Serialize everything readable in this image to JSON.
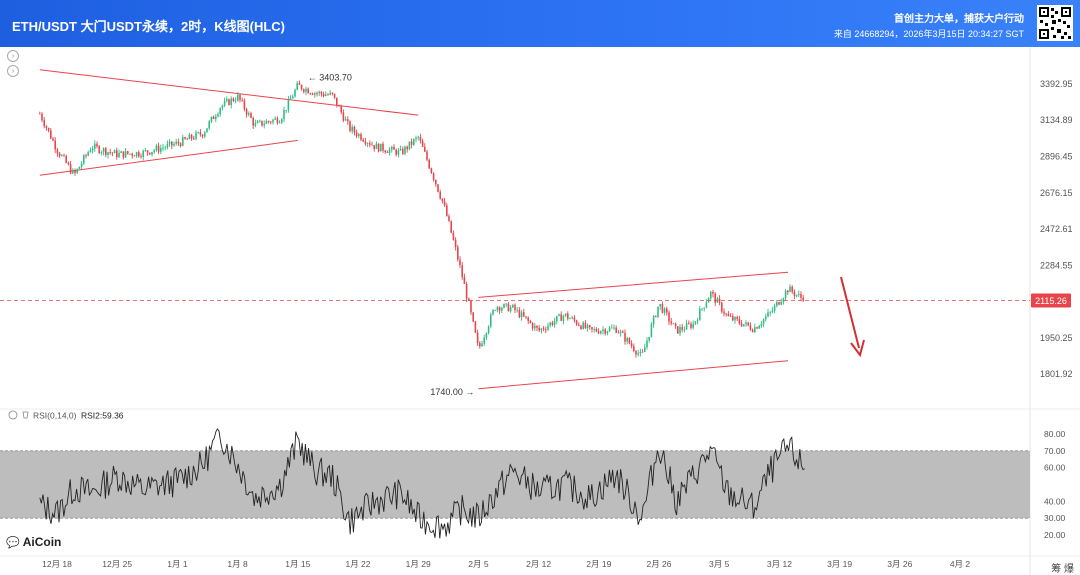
{
  "header": {
    "title": "ETH/USDT 大门USDT永续，2时，K线图(HLC)",
    "tagline": "首创主力大单，捕获大户行动",
    "meta": "来自 24668294，2026年3月15日 20:34:27 SGT"
  },
  "brand": {
    "name": "AiCoin",
    "icon": "aicoin-logo-icon"
  },
  "tools": "筹  爆",
  "colors": {
    "up": "#2ebd85",
    "down": "#e8444b",
    "trendline": "#e8444b",
    "current_price": "#e8444b",
    "rsi_band": "#bdbdbd",
    "rsi_line": "#222222",
    "arrow": "#d32f2f"
  },
  "chart_data": [
    {
      "type": "candlestick",
      "title": "ETH/USDT 大门USDT永续，2时，K线图(HLC)",
      "y_ticks": [
        "3392.95",
        "3134.89",
        "2896.45",
        "2676.15",
        "2472.61",
        "2284.55",
        "1950.25",
        "1801.92"
      ],
      "y_tick_values": [
        3392.95,
        3134.89,
        2896.45,
        2676.15,
        2472.61,
        2284.55,
        1950.25,
        1801.92
      ],
      "y_scale": "log",
      "ylim": [
        1700,
        3520
      ],
      "x_ticks": [
        "12月 18",
        "12月 25",
        "1月 1",
        "1月 8",
        "1月 15",
        "1月 22",
        "1月 29",
        "2月 5",
        "2月 12",
        "2月 19",
        "2月 26",
        "3月 5",
        "3月 12",
        "3月 19",
        "3月 26",
        "4月 2"
      ],
      "current_price": 2115.26,
      "current_price_label": "2115.26",
      "annotations": [
        {
          "text": "← 3403.70",
          "value": 3403.7
        },
        {
          "text": "1740.00 →",
          "value": 1740.0
        }
      ],
      "approx_close_path": [
        [
          "12月 16",
          3180
        ],
        [
          "12月 18",
          2940
        ],
        [
          "12月 20",
          2780
        ],
        [
          "12月 22",
          2960
        ],
        [
          "12月 25",
          2910
        ],
        [
          "12月 28",
          2920
        ],
        [
          "1月 1",
          2980
        ],
        [
          "1月 4",
          3050
        ],
        [
          "1月 6",
          3230
        ],
        [
          "1月 8",
          3300
        ],
        [
          "1月 10",
          3100
        ],
        [
          "1月 13",
          3150
        ],
        [
          "1月 15",
          3380
        ],
        [
          "1月 17",
          3330
        ],
        [
          "1月 19",
          3310
        ],
        [
          "1月 21",
          3080
        ],
        [
          "1月 24",
          2960
        ],
        [
          "1月 27",
          2920
        ],
        [
          "1月 29",
          3020
        ],
        [
          "2月 1",
          2600
        ],
        [
          "2月 3",
          2250
        ],
        [
          "2月 5",
          1900
        ],
        [
          "2月 7",
          2090
        ],
        [
          "2月 9",
          2080
        ],
        [
          "2月 12",
          1980
        ],
        [
          "2月 15",
          2050
        ],
        [
          "2月 18",
          1980
        ],
        [
          "2月 21",
          1990
        ],
        [
          "2月 24",
          1870
        ],
        [
          "2月 26",
          2100
        ],
        [
          "2月 28",
          1980
        ],
        [
          "3月 2",
          2010
        ],
        [
          "3月 4",
          2150
        ],
        [
          "3月 6",
          2040
        ],
        [
          "3月 9",
          1990
        ],
        [
          "3月 11",
          2060
        ],
        [
          "3月 13",
          2170
        ],
        [
          "3月 15",
          2115
        ]
      ],
      "trendlines": [
        {
          "name": "upper-left",
          "start": [
            "12月 16",
            3500
          ],
          "end": [
            "1月 29",
            3170
          ]
        },
        {
          "name": "lower-left",
          "start": [
            "12月 16",
            2780
          ],
          "end": [
            "1月 15",
            3000
          ]
        },
        {
          "name": "upper-right",
          "start": [
            "2月 5",
            2130
          ],
          "end": [
            "3月 13",
            2250
          ]
        },
        {
          "name": "lower-right",
          "start": [
            "2月 5",
            1745
          ],
          "end": [
            "3月 13",
            1855
          ]
        }
      ]
    },
    {
      "type": "line",
      "title": "RSI(0,14,0)",
      "legend": "RSI2:59.36",
      "series": [
        {
          "name": "RSI2",
          "last": 59.36
        }
      ],
      "y_ticks": [
        "80.00",
        "70.00",
        "60.00",
        "40.00",
        "30.00",
        "20.00"
      ],
      "y_tick_values": [
        80,
        70,
        60,
        40,
        30,
        20
      ],
      "band": [
        30,
        70
      ],
      "ylim": [
        17,
        84
      ],
      "approx_path": [
        [
          "12月 16",
          38
        ],
        [
          "12月 18",
          33
        ],
        [
          "12月 20",
          48
        ],
        [
          "12月 22",
          45
        ],
        [
          "12月 25",
          55
        ],
        [
          "12月 28",
          47
        ],
        [
          "1月 1",
          52
        ],
        [
          "1月 4",
          62
        ],
        [
          "1月 6",
          80
        ],
        [
          "1月 8",
          62
        ],
        [
          "1月 10",
          42
        ],
        [
          "1月 13",
          50
        ],
        [
          "1月 15",
          76
        ],
        [
          "1月 17",
          58
        ],
        [
          "1月 19",
          55
        ],
        [
          "1月 21",
          28
        ],
        [
          "1月 24",
          40
        ],
        [
          "1月 27",
          45
        ],
        [
          "1月 29",
          30
        ],
        [
          "2月 1",
          25
        ],
        [
          "2月 3",
          35
        ],
        [
          "2月 5",
          30
        ],
        [
          "2月 7",
          45
        ],
        [
          "2月 9",
          58
        ],
        [
          "2月 12",
          46
        ],
        [
          "2月 15",
          50
        ],
        [
          "2月 18",
          42
        ],
        [
          "2月 21",
          56
        ],
        [
          "2月 24",
          30
        ],
        [
          "2月 26",
          74
        ],
        [
          "2月 28",
          40
        ],
        [
          "3月 2",
          55
        ],
        [
          "3月 4",
          70
        ],
        [
          "3月 6",
          45
        ],
        [
          "3月 9",
          36
        ],
        [
          "3月 11",
          58
        ],
        [
          "3月 13",
          72
        ],
        [
          "3月 15",
          59
        ]
      ]
    }
  ]
}
